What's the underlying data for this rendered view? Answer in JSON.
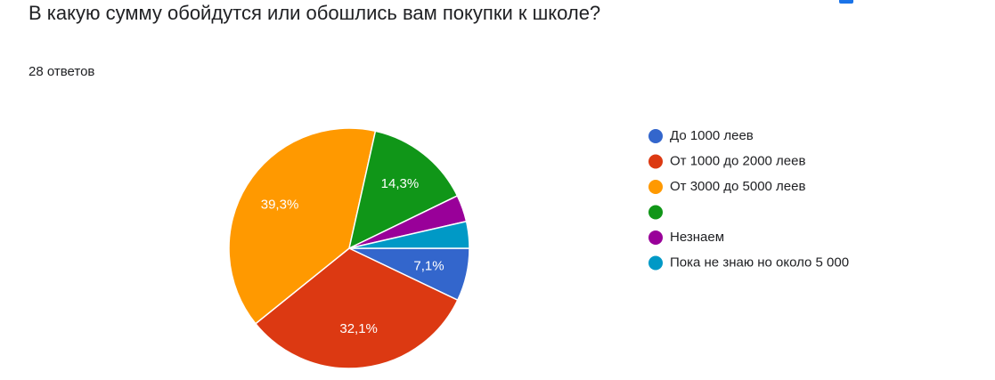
{
  "chart_data": {
    "type": "pie",
    "title": "В какую сумму обойдутся или обошлись вам покупки к школе?",
    "subtitle": "28 ответов",
    "categories": [
      "До 1000 леев",
      "От 1000 до 2000 леев",
      "От 3000 до 5000 леев",
      null,
      "Незнаем",
      "Пока не знаю но около 5 000"
    ],
    "values": [
      7.1,
      32.1,
      39.3,
      14.3,
      3.6,
      3.6
    ],
    "value_labels": [
      "7,1%",
      "32,1%",
      "39,3%",
      "14,3%",
      null,
      null
    ],
    "colors": [
      "#3366cc",
      "#dc3912",
      "#ff9900",
      "#109618",
      "#990099",
      "#0099c6"
    ],
    "legend": "right"
  }
}
